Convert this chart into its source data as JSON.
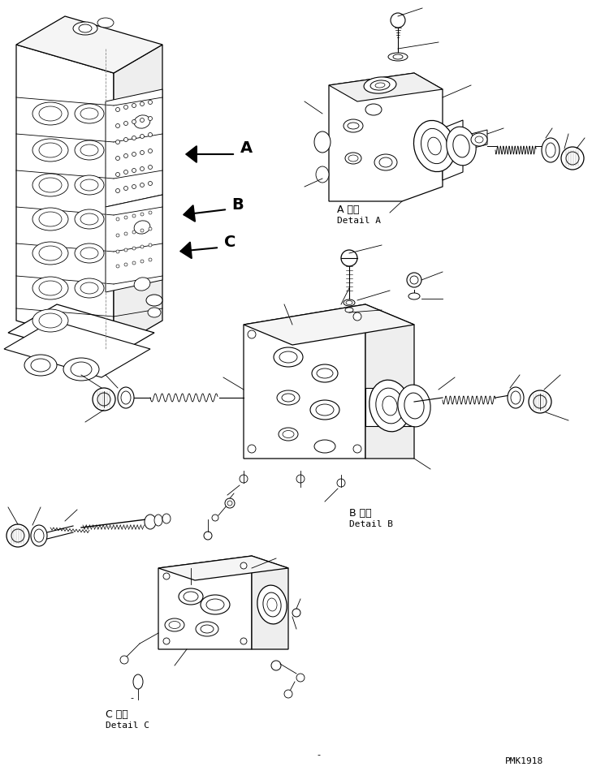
{
  "bg_color": "#ffffff",
  "fig_width": 7.29,
  "fig_height": 9.5,
  "dpi": 100,
  "label_A_kanji": "A 詳細",
  "label_A_roman": "Detail A",
  "label_B_kanji": "B 詳細",
  "label_B_roman": "Detail B",
  "label_C_kanji": "C 詳細",
  "label_C_roman": "Detail C",
  "part_number": "PMK1918",
  "line_color": "#000000",
  "line_width": 0.7
}
